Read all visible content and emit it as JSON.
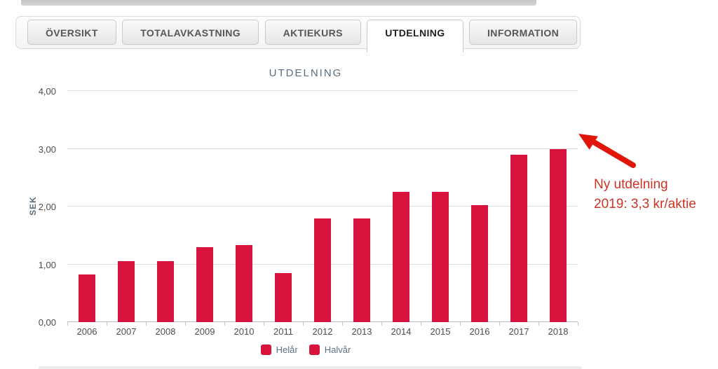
{
  "tabs": [
    {
      "label": "ÖVERSIKT",
      "active": false
    },
    {
      "label": "TOTALAVKASTNING",
      "active": false
    },
    {
      "label": "AKTIEKURS",
      "active": false
    },
    {
      "label": "UTDELNING",
      "active": true
    },
    {
      "label": "INFORMATION",
      "active": false
    }
  ],
  "chart_data": {
    "type": "bar",
    "title": "UTDELNING",
    "ylabel": "SEK",
    "categories": [
      "2006",
      "2007",
      "2008",
      "2009",
      "2010",
      "2011",
      "2012",
      "2013",
      "2014",
      "2015",
      "2016",
      "2017",
      "2018"
    ],
    "series": [
      {
        "name": "Helår",
        "values": [
          0.82,
          1.05,
          1.05,
          1.3,
          1.33,
          0.85,
          1.8,
          1.8,
          2.25,
          2.25,
          2.02,
          2.9,
          3.0
        ]
      }
    ],
    "legend": [
      {
        "label": "Helår",
        "color": "#d8143c"
      },
      {
        "label": "Halvår",
        "color": "#d8143c"
      }
    ],
    "legend_position": "bottom",
    "grid": true,
    "ylim": [
      0,
      4
    ],
    "yticks": [
      {
        "value": 0,
        "label": "0,00"
      },
      {
        "value": 1,
        "label": "1,00"
      },
      {
        "value": 2,
        "label": "2,00"
      },
      {
        "value": 3,
        "label": "3,00"
      },
      {
        "value": 4,
        "label": "4,00"
      }
    ],
    "bar_color": "#d8143c"
  },
  "annotation": {
    "lines": [
      "Ny utdelning",
      "2019: 3,3 kr/aktie"
    ],
    "text_color": "#cf3325",
    "arrow_color": "#e2150a"
  }
}
